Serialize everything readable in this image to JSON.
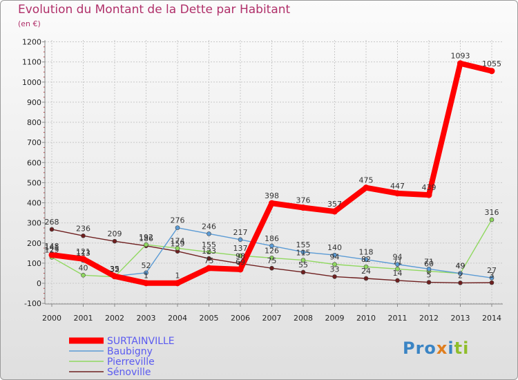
{
  "title": "Evolution du Montant de la Dette par Habitant",
  "unit_label": "(en €)",
  "logo": {
    "text": "Proxiti",
    "parts": [
      "Pro",
      "x",
      "i",
      "ti"
    ]
  },
  "chart_data": {
    "type": "line",
    "categories": [
      "2000",
      "2001",
      "2002",
      "2003",
      "2004",
      "2005",
      "2006",
      "2007",
      "2008",
      "2009",
      "2010",
      "2011",
      "2012",
      "2013",
      "2014"
    ],
    "ylim": [
      -100,
      1200
    ],
    "yticks": [
      -100,
      0,
      100,
      200,
      300,
      400,
      500,
      600,
      700,
      800,
      900,
      1000,
      1100,
      1200
    ],
    "grid": true,
    "legend_position": "bottom-left",
    "series": [
      {
        "name": "Sénoville",
        "color": "#6e1f1f",
        "values": [
          268,
          236,
          209,
          186,
          159,
          123,
          98,
          75,
          55,
          33,
          24,
          14,
          5,
          2,
          3
        ]
      },
      {
        "name": "Pierreville",
        "color": "#90d860",
        "values": [
          129,
          40,
          32,
          192,
          174,
          155,
          137,
          126,
          115,
          94,
          82,
          71,
          60,
          49,
          316
        ]
      },
      {
        "name": "Baubigny",
        "color": "#5b9bd5",
        "values": [
          148,
          113,
          35,
          52,
          276,
          246,
          217,
          186,
          155,
          140,
          118,
          94,
          71,
          49,
          27
        ]
      },
      {
        "name": "SURTAINVILLE",
        "color": "#ff0000",
        "values": [
          141,
          121,
          35,
          1,
          1,
          75,
          69,
          398,
          376,
          357,
          475,
          447,
          439,
          1093,
          1055
        ]
      }
    ]
  }
}
